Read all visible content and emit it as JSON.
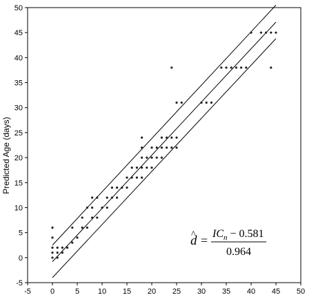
{
  "chart_data": {
    "type": "scatter",
    "title": "",
    "xlabel": "",
    "ylabel": "Predicted Age (days)",
    "xlim": [
      -5,
      50
    ],
    "ylim": [
      -5,
      50
    ],
    "xticks": [
      "-5",
      "0",
      "5",
      "10",
      "15",
      "20",
      "25",
      "30",
      "35",
      "40",
      "45",
      "50"
    ],
    "yticks": [
      "-5",
      "0",
      "5",
      "10",
      "15",
      "20",
      "25",
      "30",
      "35",
      "40",
      "45",
      "50"
    ],
    "grid": false,
    "legend": "none",
    "marker_color": "#222222",
    "line_color": "#000000",
    "lines": [
      {
        "x": [
          0,
          45
        ],
        "y": [
          2.5,
          50.5
        ]
      },
      {
        "x": [
          0,
          45
        ],
        "y": [
          -0.8,
          47.1
        ]
      },
      {
        "x": [
          0,
          45
        ],
        "y": [
          -4.0,
          43.8
        ]
      }
    ],
    "points": [
      [
        0,
        0
      ],
      [
        0,
        1
      ],
      [
        0,
        2
      ],
      [
        0,
        4
      ],
      [
        0,
        6
      ],
      [
        1,
        0
      ],
      [
        1,
        1
      ],
      [
        1,
        2
      ],
      [
        2,
        1
      ],
      [
        2,
        2
      ],
      [
        3,
        2
      ],
      [
        4,
        3
      ],
      [
        4,
        6
      ],
      [
        5,
        4
      ],
      [
        6,
        6
      ],
      [
        6,
        8
      ],
      [
        7,
        6
      ],
      [
        7,
        10
      ],
      [
        8,
        8
      ],
      [
        8,
        10
      ],
      [
        8,
        12
      ],
      [
        9,
        8
      ],
      [
        9,
        12
      ],
      [
        10,
        10
      ],
      [
        11,
        10
      ],
      [
        11,
        12
      ],
      [
        12,
        12
      ],
      [
        12,
        14
      ],
      [
        13,
        12
      ],
      [
        13,
        14
      ],
      [
        14,
        14
      ],
      [
        15,
        14
      ],
      [
        15,
        16
      ],
      [
        16,
        16
      ],
      [
        16,
        18
      ],
      [
        17,
        16
      ],
      [
        17,
        18
      ],
      [
        18,
        16
      ],
      [
        18,
        18
      ],
      [
        18,
        20
      ],
      [
        18,
        22
      ],
      [
        18,
        24
      ],
      [
        19,
        18
      ],
      [
        19,
        20
      ],
      [
        20,
        18
      ],
      [
        20,
        20
      ],
      [
        20,
        22
      ],
      [
        21,
        20
      ],
      [
        21,
        22
      ],
      [
        22,
        20
      ],
      [
        22,
        22
      ],
      [
        22,
        24
      ],
      [
        23,
        22
      ],
      [
        23,
        24
      ],
      [
        24,
        22
      ],
      [
        24,
        24
      ],
      [
        24,
        38
      ],
      [
        25,
        22
      ],
      [
        25,
        24
      ],
      [
        25,
        31
      ],
      [
        26,
        31
      ],
      [
        30,
        31
      ],
      [
        31,
        31
      ],
      [
        32,
        31
      ],
      [
        34,
        38
      ],
      [
        35,
        38
      ],
      [
        36,
        38
      ],
      [
        37,
        38
      ],
      [
        38,
        38
      ],
      [
        39,
        38
      ],
      [
        40,
        45
      ],
      [
        42,
        45
      ],
      [
        43,
        45
      ],
      [
        44,
        45
      ],
      [
        44,
        38
      ],
      [
        45,
        45
      ]
    ],
    "annotation": {
      "lhs_symbol": "d",
      "lhs_hat": "^",
      "equals": "=",
      "numerator_var": "IC",
      "numerator_sub": "n",
      "numerator_rest": " − 0.581",
      "denominator": "0.964"
    }
  }
}
